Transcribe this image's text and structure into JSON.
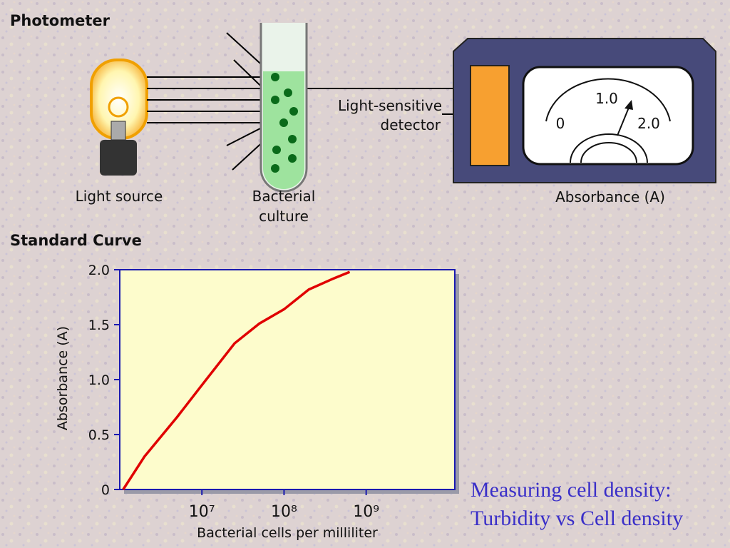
{
  "diagram": {
    "title": "Photometer",
    "light_source": "Light source",
    "culture": [
      "Bacterial",
      "culture"
    ],
    "detector": [
      "Light-sensitive",
      "detector"
    ],
    "meter_caption": "Absorbance (A)",
    "meter_labels": [
      "0",
      "1.0",
      "2.0"
    ]
  },
  "section_title": "Standard Curve",
  "caption": [
    "Measuring cell density:",
    "Turbidity vs Cell density"
  ],
  "chart_data": {
    "type": "line",
    "x_label": "Bacterial cells  per milliliter",
    "y_label": "Absorbance (A)",
    "x": [
      1100000,
      2000000,
      5000000,
      10000000,
      25000000,
      50000000,
      100000000,
      200000000,
      400000000,
      630000000
    ],
    "series": [
      {
        "color": "#e00000",
        "values": [
          0,
          0.3,
          0.66,
          0.95,
          1.33,
          1.51,
          1.64,
          1.82,
          1.92,
          1.98
        ]
      }
    ],
    "xscale": "log",
    "xlim": [
      1000000,
      12000000000
    ],
    "xticks": [
      {
        "value": 10000000,
        "label": "10⁷"
      },
      {
        "value": 100000000,
        "label": "10⁸"
      },
      {
        "value": 1000000000,
        "label": "10⁹"
      }
    ],
    "ylim": [
      0,
      2
    ],
    "yticks": [
      0,
      0.5,
      {
        "value": 1,
        "label": "1.0"
      },
      1.5,
      {
        "value": 2,
        "label": "2.0"
      }
    ]
  }
}
